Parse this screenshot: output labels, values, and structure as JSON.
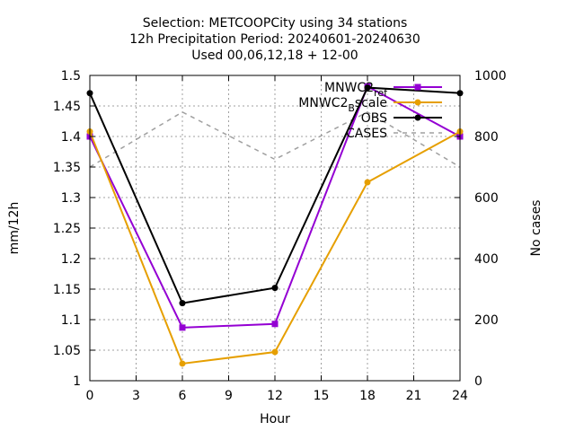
{
  "chart_data": {
    "type": "line",
    "title_lines": [
      "Selection: METCOOPCity using     34 stations",
      "12h Precipitation   Period: 20240601-20240630",
      "Used 00,06,12,18 + 12-00"
    ],
    "xlabel": "Hour",
    "ylabel": "mm/12h",
    "y2label": "No cases",
    "xlim": [
      0,
      24
    ],
    "ylim": [
      1,
      1.5
    ],
    "y2lim": [
      0,
      1000
    ],
    "x_ticks": [
      "0",
      "3",
      "6",
      "9",
      "12",
      "15",
      "18",
      "21",
      "24"
    ],
    "y_ticks": [
      "1",
      "1.05",
      "1.1",
      "1.15",
      "1.2",
      "1.25",
      "1.3",
      "1.35",
      "1.4",
      "1.45",
      "1.5"
    ],
    "y2_ticks": [
      "0",
      "200",
      "400",
      "600",
      "800",
      "1000"
    ],
    "grid": true,
    "legend_position": "top-right",
    "series": [
      {
        "name": "MNWC2_ref",
        "legend_main": "MNWC2",
        "legend_sub": "ref",
        "axis": "y1",
        "color": "#9400d3",
        "style": "solid",
        "marker": "square",
        "x": [
          0,
          6,
          12,
          18,
          24
        ],
        "y": [
          1.4,
          1.087,
          1.093,
          1.482,
          1.4
        ]
      },
      {
        "name": "MNWC2_Bscale",
        "legend_main": "MNWC2",
        "legend_sub": "B",
        "legend_tail": "scale",
        "axis": "y1",
        "color": "#e69f00",
        "style": "solid",
        "marker": "circle",
        "x": [
          0,
          6,
          12,
          18,
          24
        ],
        "y": [
          1.408,
          1.028,
          1.047,
          1.325,
          1.408
        ]
      },
      {
        "name": "OBS",
        "axis": "y1",
        "color": "#000000",
        "style": "solid",
        "marker": "circle",
        "x": [
          0,
          6,
          12,
          18,
          24
        ],
        "y": [
          1.471,
          1.127,
          1.152,
          1.48,
          1.471
        ]
      },
      {
        "name": "CASES",
        "axis": "y2",
        "color": "#a0a0a0",
        "style": "dashed",
        "marker": "none",
        "x": [
          0,
          6,
          12,
          18,
          24
        ],
        "y": [
          700,
          880,
          725,
          880,
          700
        ]
      }
    ]
  }
}
